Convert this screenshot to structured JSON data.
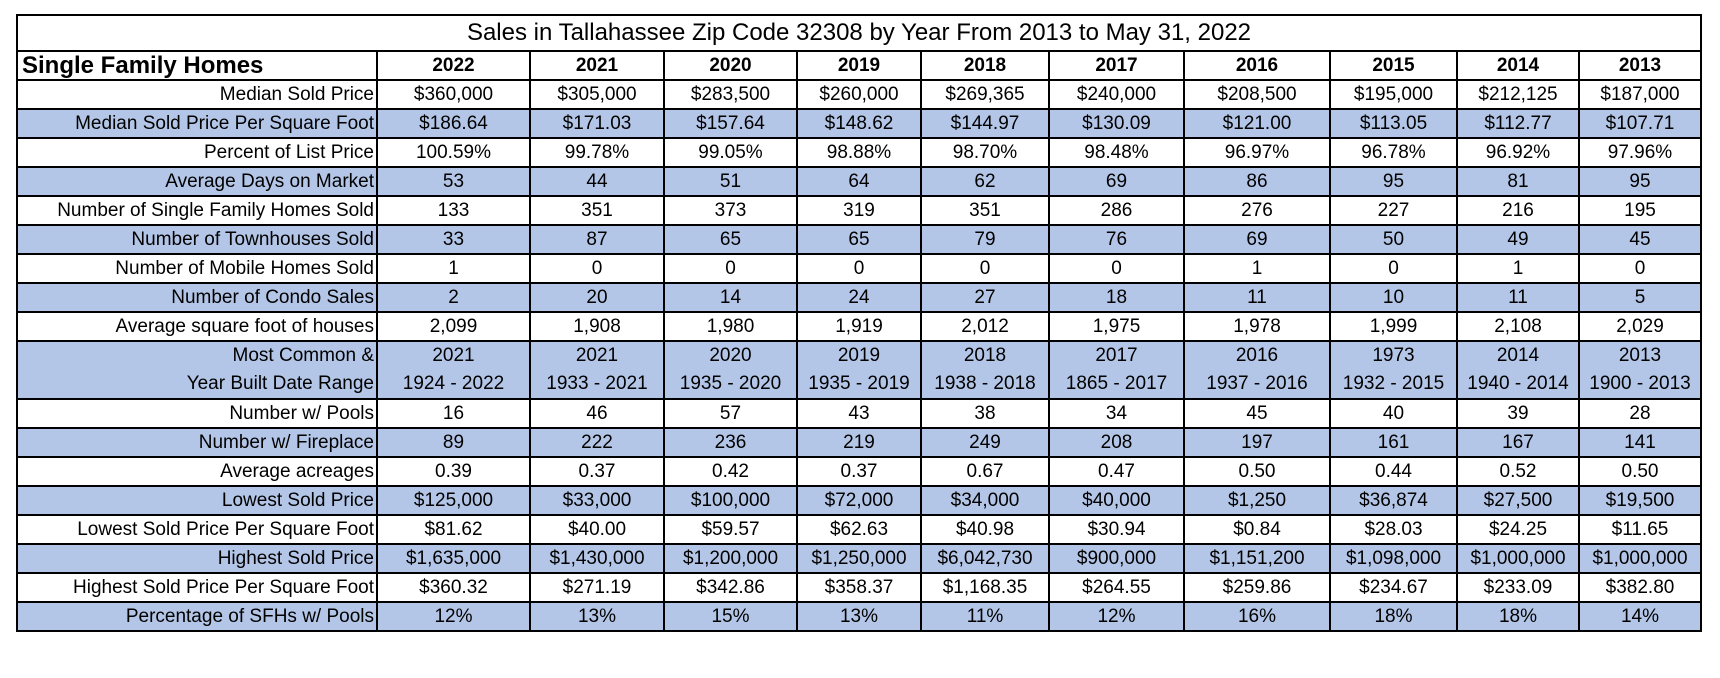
{
  "title": "Sales in Tallahassee Zip Code 32308 by Year From 2013 to May 31, 2022",
  "header": {
    "section_label": "Single Family Homes",
    "years": [
      "2022",
      "2021",
      "2020",
      "2019",
      "2018",
      "2017",
      "2016",
      "2015",
      "2014",
      "2013"
    ]
  },
  "colors": {
    "band": "#b4c6e7",
    "border": "#000000",
    "background": "#ffffff"
  },
  "rows": [
    {
      "label": "Median Sold Price",
      "values": [
        "$360,000",
        "$305,000",
        "$283,500",
        "$260,000",
        "$269,365",
        "$240,000",
        "$208,500",
        "$195,000",
        "$212,125",
        "$187,000"
      ]
    },
    {
      "label": "Median Sold Price Per Square Foot",
      "values": [
        "$186.64",
        "$171.03",
        "$157.64",
        "$148.62",
        "$144.97",
        "$130.09",
        "$121.00",
        "$113.05",
        "$112.77",
        "$107.71"
      ]
    },
    {
      "label": "Percent of List Price",
      "values": [
        "100.59%",
        "99.78%",
        "99.05%",
        "98.88%",
        "98.70%",
        "98.48%",
        "96.97%",
        "96.78%",
        "96.92%",
        "97.96%"
      ]
    },
    {
      "label": "Average Days on Market",
      "values": [
        "53",
        "44",
        "51",
        "64",
        "62",
        "69",
        "86",
        "95",
        "81",
        "95"
      ]
    },
    {
      "label": "Number of Single Family Homes Sold",
      "values": [
        "133",
        "351",
        "373",
        "319",
        "351",
        "286",
        "276",
        "227",
        "216",
        "195"
      ]
    },
    {
      "label": "Number of Townhouses Sold",
      "values": [
        "33",
        "87",
        "65",
        "65",
        "79",
        "76",
        "69",
        "50",
        "49",
        "45"
      ]
    },
    {
      "label": "Number of Mobile Homes Sold",
      "values": [
        "1",
        "0",
        "0",
        "0",
        "0",
        "0",
        "1",
        "0",
        "1",
        "0"
      ]
    },
    {
      "label": "Number of Condo Sales",
      "values": [
        "2",
        "20",
        "14",
        "24",
        "27",
        "18",
        "11",
        "10",
        "11",
        "5"
      ]
    },
    {
      "label": "Average square foot of houses",
      "values": [
        "2,099",
        "1,908",
        "1,980",
        "1,919",
        "2,012",
        "1,975",
        "1,978",
        "1,999",
        "2,108",
        "2,029"
      ]
    },
    {
      "label_line1": "Most Common &",
      "label_line2": "Year Built Date Range",
      "most_common": [
        "2021",
        "2021",
        "2020",
        "2019",
        "2018",
        "2017",
        "2016",
        "1973",
        "2014",
        "2013"
      ],
      "ranges": [
        "1924 - 2022",
        "1933 - 2021",
        "1935 - 2020",
        "1935 - 2019",
        "1938 - 2018",
        "1865 - 2017",
        "1937 - 2016",
        "1932 - 2015",
        "1940 - 2014",
        "1900 - 2013"
      ]
    },
    {
      "label": "Number w/ Pools",
      "values": [
        "16",
        "46",
        "57",
        "43",
        "38",
        "34",
        "45",
        "40",
        "39",
        "28"
      ]
    },
    {
      "label": "Number w/ Fireplace",
      "values": [
        "89",
        "222",
        "236",
        "219",
        "249",
        "208",
        "197",
        "161",
        "167",
        "141"
      ]
    },
    {
      "label": "Average acreages",
      "values": [
        "0.39",
        "0.37",
        "0.42",
        "0.37",
        "0.67",
        "0.47",
        "0.50",
        "0.44",
        "0.52",
        "0.50"
      ]
    },
    {
      "label": "Lowest Sold Price",
      "values": [
        "$125,000",
        "$33,000",
        "$100,000",
        "$72,000",
        "$34,000",
        "$40,000",
        "$1,250",
        "$36,874",
        "$27,500",
        "$19,500"
      ]
    },
    {
      "label": "Lowest Sold Price Per Square Foot",
      "values": [
        "$81.62",
        "$40.00",
        "$59.57",
        "$62.63",
        "$40.98",
        "$30.94",
        "$0.84",
        "$28.03",
        "$24.25",
        "$11.65"
      ]
    },
    {
      "label": "Highest Sold Price",
      "values": [
        "$1,635,000",
        "$1,430,000",
        "$1,200,000",
        "$1,250,000",
        "$6,042,730",
        "$900,000",
        "$1,151,200",
        "$1,098,000",
        "$1,000,000",
        "$1,000,000"
      ]
    },
    {
      "label": "Highest Sold Price Per Square Foot",
      "values": [
        "$360.32",
        "$271.19",
        "$342.86",
        "$358.37",
        "$1,168.35",
        "$264.55",
        "$259.86",
        "$234.67",
        "$233.09",
        "$382.80"
      ]
    },
    {
      "label": "Percentage of SFHs w/ Pools",
      "values": [
        "12%",
        "13%",
        "15%",
        "13%",
        "11%",
        "12%",
        "16%",
        "18%",
        "18%",
        "14%"
      ]
    }
  ]
}
